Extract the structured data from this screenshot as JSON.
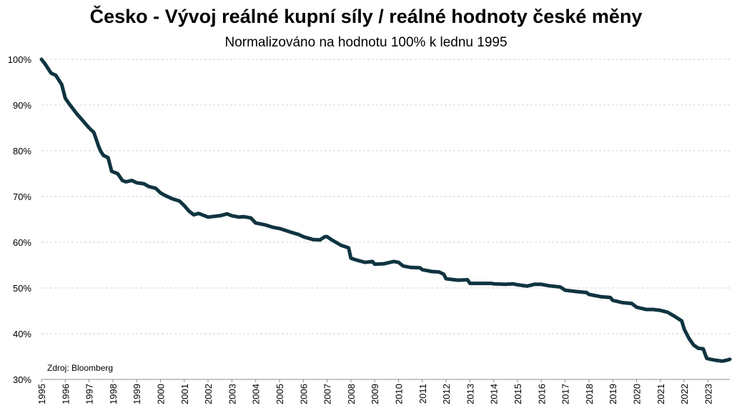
{
  "chart_data": {
    "type": "line",
    "title": "Česko - Vývoj reálné kupní síly / reálné hodnoty české měny",
    "subtitle": "Normalizováno na hodnotu 100% k lednu 1995",
    "xlabel": "",
    "ylabel": "",
    "source": "Zdroj: Bloomberg",
    "xlim": [
      1995.0,
      2023.92
    ],
    "ylim": [
      30,
      100
    ],
    "y_ticks": [
      "30%",
      "40%",
      "50%",
      "60%",
      "70%",
      "80%",
      "90%",
      "100%"
    ],
    "x_ticks": [
      "1995",
      "1996",
      "1997",
      "1998",
      "1999",
      "2000",
      "2001",
      "2002",
      "2003",
      "2004",
      "2005",
      "2006",
      "2007",
      "2008",
      "2009",
      "2010",
      "2011",
      "2012",
      "2013",
      "2014",
      "2015",
      "2016",
      "2017",
      "2018",
      "2019",
      "2020",
      "2021",
      "2022",
      "2023"
    ],
    "grid": "horizontal",
    "colors": {
      "line": "#0f3440",
      "grid": "#d0d0d0"
    },
    "series": [
      {
        "x": [
          1995.0,
          1995.15,
          1995.4,
          1995.6,
          1995.85,
          1996.0,
          1996.2,
          1996.5,
          1996.75,
          1997.0,
          1997.2,
          1997.4,
          1997.5,
          1997.6,
          1997.8,
          1997.95,
          1998.2,
          1998.4,
          1998.55,
          1998.8,
          1999.0,
          1999.3,
          1999.5,
          1999.8,
          2000.0,
          2000.2,
          2000.5,
          2000.8,
          2001.0,
          2001.2,
          2001.4,
          2001.6,
          2002.0,
          2002.5,
          2002.8,
          2003.0,
          2003.3,
          2003.5,
          2003.8,
          2004.0,
          2004.4,
          2004.7,
          2005.0,
          2005.3,
          2005.6,
          2005.8,
          2006.0,
          2006.4,
          2006.7,
          2006.9,
          2007.0,
          2007.2,
          2007.6,
          2007.9,
          2008.0,
          2008.3,
          2008.6,
          2008.9,
          2009.0,
          2009.4,
          2009.8,
          2010.0,
          2010.2,
          2010.5,
          2010.9,
          2011.0,
          2011.4,
          2011.7,
          2011.9,
          2012.0,
          2012.5,
          2012.9,
          2013.0,
          2013.5,
          2013.9,
          2014.0,
          2014.5,
          2014.8,
          2015.0,
          2015.4,
          2015.7,
          2016.0,
          2016.3,
          2016.8,
          2017.0,
          2017.5,
          2017.9,
          2018.0,
          2018.5,
          2018.9,
          2019.0,
          2019.4,
          2019.8,
          2020.0,
          2020.4,
          2020.7,
          2021.0,
          2021.3,
          2021.6,
          2021.9,
          2022.0,
          2022.2,
          2022.4,
          2022.6,
          2022.8,
          2022.95,
          2023.1,
          2023.3,
          2023.6,
          2023.8,
          2023.92
        ],
        "values": [
          100,
          99,
          97,
          96.5,
          94.5,
          91.5,
          90,
          88,
          86.5,
          85,
          84,
          81,
          79.8,
          79,
          78.5,
          75.5,
          75,
          73.5,
          73.2,
          73.5,
          73,
          72.8,
          72.2,
          71.8,
          70.8,
          70.2,
          69.5,
          69,
          68,
          66.8,
          66,
          66.3,
          65.5,
          65.8,
          66.2,
          65.8,
          65.5,
          65.6,
          65.3,
          64.2,
          63.8,
          63.3,
          63,
          62.5,
          62,
          61.7,
          61.2,
          60.6,
          60.5,
          61.2,
          61.2,
          60.5,
          59.3,
          58.8,
          56.5,
          56,
          55.6,
          55.8,
          55.2,
          55.3,
          55.8,
          55.6,
          54.8,
          54.5,
          54.4,
          54,
          53.6,
          53.5,
          53,
          52,
          51.7,
          51.8,
          51,
          51,
          51,
          50.9,
          50.8,
          50.9,
          50.7,
          50.4,
          50.8,
          50.8,
          50.5,
          50.2,
          49.5,
          49.2,
          49,
          48.6,
          48.1,
          47.9,
          47.3,
          46.8,
          46.6,
          45.8,
          45.3,
          45.3,
          45.1,
          44.7,
          43.8,
          42.8,
          41,
          39,
          37.5,
          36.8,
          36.7,
          34.6,
          34.4,
          34.2,
          34,
          34.2,
          34.4
        ]
      }
    ]
  }
}
